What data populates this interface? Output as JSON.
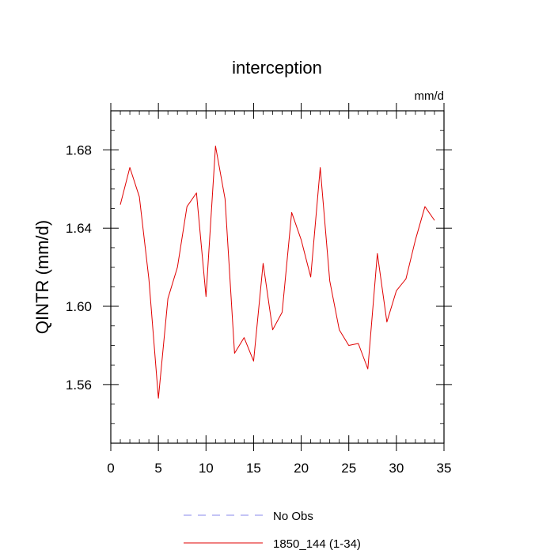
{
  "chart_data": {
    "type": "line",
    "title": "interception",
    "units_label": "mm/d",
    "ylabel": "QINTR  (mm/d)",
    "xlabel": "",
    "xlim": [
      0,
      35
    ],
    "ylim": [
      1.53,
      1.7
    ],
    "x_ticks": [
      0,
      5,
      10,
      15,
      20,
      25,
      30,
      35
    ],
    "x_tick_labels": [
      "0",
      "5",
      "10",
      "15",
      "20",
      "25",
      "30",
      "35"
    ],
    "y_ticks": [
      1.56,
      1.6,
      1.64,
      1.68
    ],
    "y_tick_labels": [
      "1.56",
      "1.60",
      "1.64",
      "1.68"
    ],
    "legend_position": "bottom-center",
    "series": [
      {
        "name": "1850_144 (1-34)",
        "color": "#e00000",
        "style": "solid",
        "x": [
          1,
          2,
          3,
          4,
          5,
          6,
          7,
          8,
          9,
          10,
          11,
          12,
          13,
          14,
          15,
          16,
          17,
          18,
          19,
          20,
          21,
          22,
          23,
          24,
          25,
          26,
          27,
          28,
          29,
          30,
          31,
          32,
          33,
          34
        ],
        "values": [
          1.652,
          1.671,
          1.656,
          1.614,
          1.553,
          1.604,
          1.62,
          1.651,
          1.658,
          1.605,
          1.682,
          1.655,
          1.576,
          1.584,
          1.572,
          1.622,
          1.588,
          1.597,
          1.648,
          1.634,
          1.615,
          1.671,
          1.613,
          1.588,
          1.58,
          1.581,
          1.568,
          1.627,
          1.592,
          1.608,
          1.614,
          1.634,
          1.651,
          1.644
        ]
      }
    ],
    "legend": [
      {
        "label": "No Obs",
        "color": "#8888ee",
        "style": "dashed"
      },
      {
        "label": "1850_144 (1-34)",
        "color": "#e00000",
        "style": "solid"
      }
    ]
  }
}
